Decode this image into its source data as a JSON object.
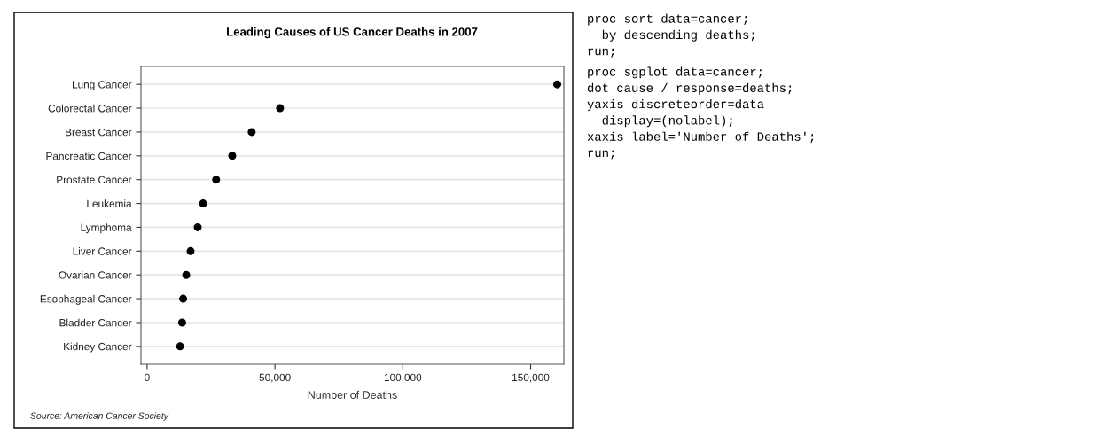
{
  "chart_data": [
    {
      "type": "scatter",
      "orientation": "horizontal",
      "title": "Leading Causes of US Cancer Deaths in 2007",
      "xlabel": "Number of Deaths",
      "categories": [
        "Lung Cancer",
        "Colorectal Cancer",
        "Breast Cancer",
        "Pancreatic Cancer",
        "Prostate Cancer",
        "Leukemia",
        "Lymphoma",
        "Liver Cancer",
        "Ovarian Cancer",
        "Esophageal Cancer",
        "Bladder Cancer",
        "Kidney Cancer"
      ],
      "series": [
        {
          "color": "#000000",
          "values": [
            160400,
            52000,
            40900,
            33300,
            27000,
            21900,
            19800,
            17000,
            15300,
            14100,
            13700,
            12900
          ]
        }
      ],
      "xlim": [
        -2400,
        163000
      ],
      "xticks": [
        {
          "value": 0,
          "label": "0"
        },
        {
          "value": 50000,
          "label": "50,000"
        },
        {
          "value": 100000,
          "label": "100,000"
        },
        {
          "value": 150000,
          "label": "150,000"
        }
      ],
      "grid": "y",
      "marker": "circle",
      "annotations": [
        "Source: American Cancer Society"
      ]
    },
    {
      "type": "other",
      "annotations": [
        "proc sort data=cancer;",
        "  by descending deaths;",
        "run;",
        "proc sgplot data=cancer;",
        "dot cause / response=deaths;",
        "yaxis discreteorder=data",
        "  display=(nolabel);",
        "xaxis label='Number of Deaths';",
        "run;"
      ]
    }
  ]
}
